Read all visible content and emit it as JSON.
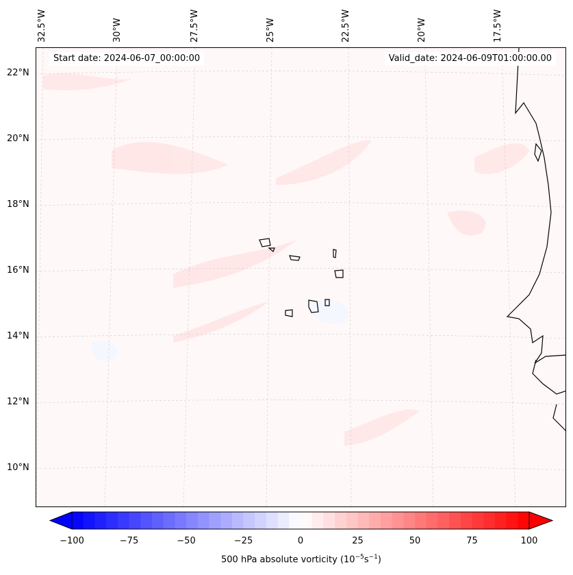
{
  "header": {
    "start_date": "Start date: 2024-06-07_00:00:00",
    "valid_date": "Valid_date: 2024-06-09T01:00:00.00"
  },
  "lon_labels": [
    "32.5°W",
    "30°W",
    "27.5°W",
    "25°W",
    "22.5°W",
    "20°W",
    "17.5°W"
  ],
  "lat_labels": [
    "22°N",
    "20°N",
    "18°N",
    "16°N",
    "14°N",
    "12°N",
    "10°N"
  ],
  "colorbar": {
    "label_main": "500 hPa absolute vorticity (10",
    "exp1": "−5",
    "mid": "s",
    "exp2": "−1",
    "close": ")",
    "ticks": [
      "−100",
      "−75",
      "−50",
      "−25",
      "0",
      "25",
      "50",
      "75",
      "100"
    ],
    "min": -100,
    "max": 100,
    "step": 5,
    "low_color": "#0000ff",
    "high_color": "#ff0000"
  }
}
